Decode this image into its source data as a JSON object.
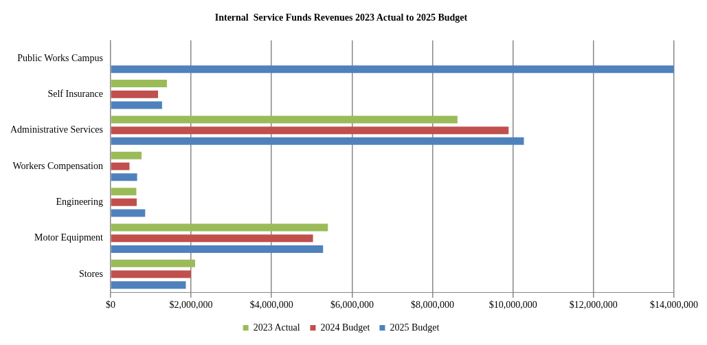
{
  "chart_data": {
    "type": "bar",
    "orientation": "horizontal",
    "title": "Internal  Service Funds Revenues 2023 Actual to 2025 Budget",
    "categories": [
      "Public Works Campus",
      "Self Insurance",
      "Administrative Services",
      "Workers Compensation",
      "Engineering",
      "Motor Equipment",
      "Stores"
    ],
    "series": [
      {
        "name": "2023 Actual",
        "color": "#9bbb59",
        "values": [
          null,
          1400000,
          8620000,
          770000,
          640000,
          5400000,
          2100000
        ]
      },
      {
        "name": "2024 Budget",
        "color": "#c0504d",
        "values": [
          null,
          1180000,
          9890000,
          470000,
          650000,
          5030000,
          2000000
        ]
      },
      {
        "name": "2025 Budget",
        "color": "#4f81bd",
        "values": [
          14000000,
          1280000,
          10270000,
          660000,
          860000,
          5280000,
          1870000
        ]
      }
    ],
    "xlim": [
      0,
      14000000
    ],
    "xticks": [
      {
        "value": 0,
        "label": "$0"
      },
      {
        "value": 2000000,
        "label": "$2,000,000"
      },
      {
        "value": 4000000,
        "label": "$4,000,000"
      },
      {
        "value": 6000000,
        "label": "$6,000,000"
      },
      {
        "value": 8000000,
        "label": "$8,000,000"
      },
      {
        "value": 10000000,
        "label": "$10,000,000"
      },
      {
        "value": 12000000,
        "label": "$12,000,000"
      },
      {
        "value": 14000000,
        "label": "$14,000,000"
      }
    ],
    "grid": "x",
    "legend": "bottom"
  }
}
